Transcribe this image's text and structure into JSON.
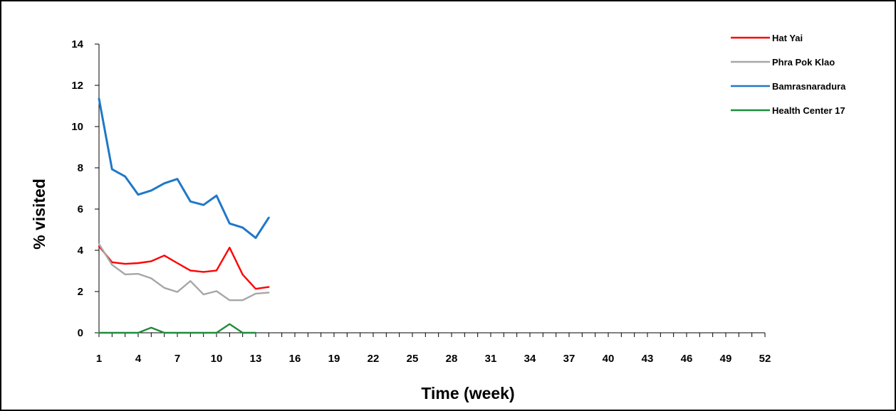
{
  "chart_data": {
    "type": "line",
    "title": "",
    "xlabel": "Time (week)",
    "ylabel": "% visited",
    "xlim": [
      1,
      52
    ],
    "ylim": [
      0,
      14
    ],
    "x_ticks": [
      1,
      4,
      7,
      10,
      13,
      16,
      19,
      22,
      25,
      28,
      31,
      34,
      37,
      40,
      43,
      46,
      49,
      52
    ],
    "y_ticks": [
      0,
      2,
      4,
      6,
      8,
      10,
      12,
      14
    ],
    "grid": false,
    "legend_position": "top-right",
    "x": [
      1,
      2,
      3,
      4,
      5,
      6,
      7,
      8,
      9,
      10,
      11,
      12,
      13,
      14
    ],
    "series": [
      {
        "name": "Hat Yai",
        "color": "#FF0000",
        "x": [
          1,
          2,
          3,
          4,
          5,
          6,
          7,
          8,
          9,
          10,
          11,
          12,
          13,
          14
        ],
        "values": [
          4.2,
          3.42,
          3.34,
          3.38,
          3.47,
          3.75,
          3.38,
          3.02,
          2.95,
          3.02,
          4.13,
          2.82,
          2.13,
          2.22
        ]
      },
      {
        "name": "Phra Pok Klao",
        "color": "#A6A6A6",
        "x": [
          1,
          2,
          3,
          4,
          5,
          6,
          7,
          8,
          9,
          10,
          11,
          12,
          13,
          14
        ],
        "values": [
          4.3,
          3.3,
          2.83,
          2.86,
          2.64,
          2.18,
          1.98,
          2.51,
          1.86,
          2.02,
          1.58,
          1.58,
          1.9,
          1.95
        ]
      },
      {
        "name": "Bamrasnaradura",
        "color": "#1F78C8",
        "x": [
          1,
          2,
          3,
          4,
          5,
          6,
          7,
          8,
          9,
          10,
          11,
          12,
          13,
          14
        ],
        "values": [
          11.35,
          7.93,
          7.58,
          6.7,
          6.9,
          7.25,
          7.46,
          6.37,
          6.2,
          6.65,
          5.3,
          5.1,
          4.6,
          5.58
        ]
      },
      {
        "name": "Health Center 17",
        "color": "#1E8C3A",
        "x": [
          1,
          2,
          3,
          4,
          5,
          6,
          7,
          8,
          9,
          10,
          11,
          12,
          13
        ],
        "values": [
          0,
          0,
          0,
          0,
          0.25,
          0,
          0,
          0,
          0,
          0,
          0.42,
          0,
          0
        ]
      }
    ]
  }
}
